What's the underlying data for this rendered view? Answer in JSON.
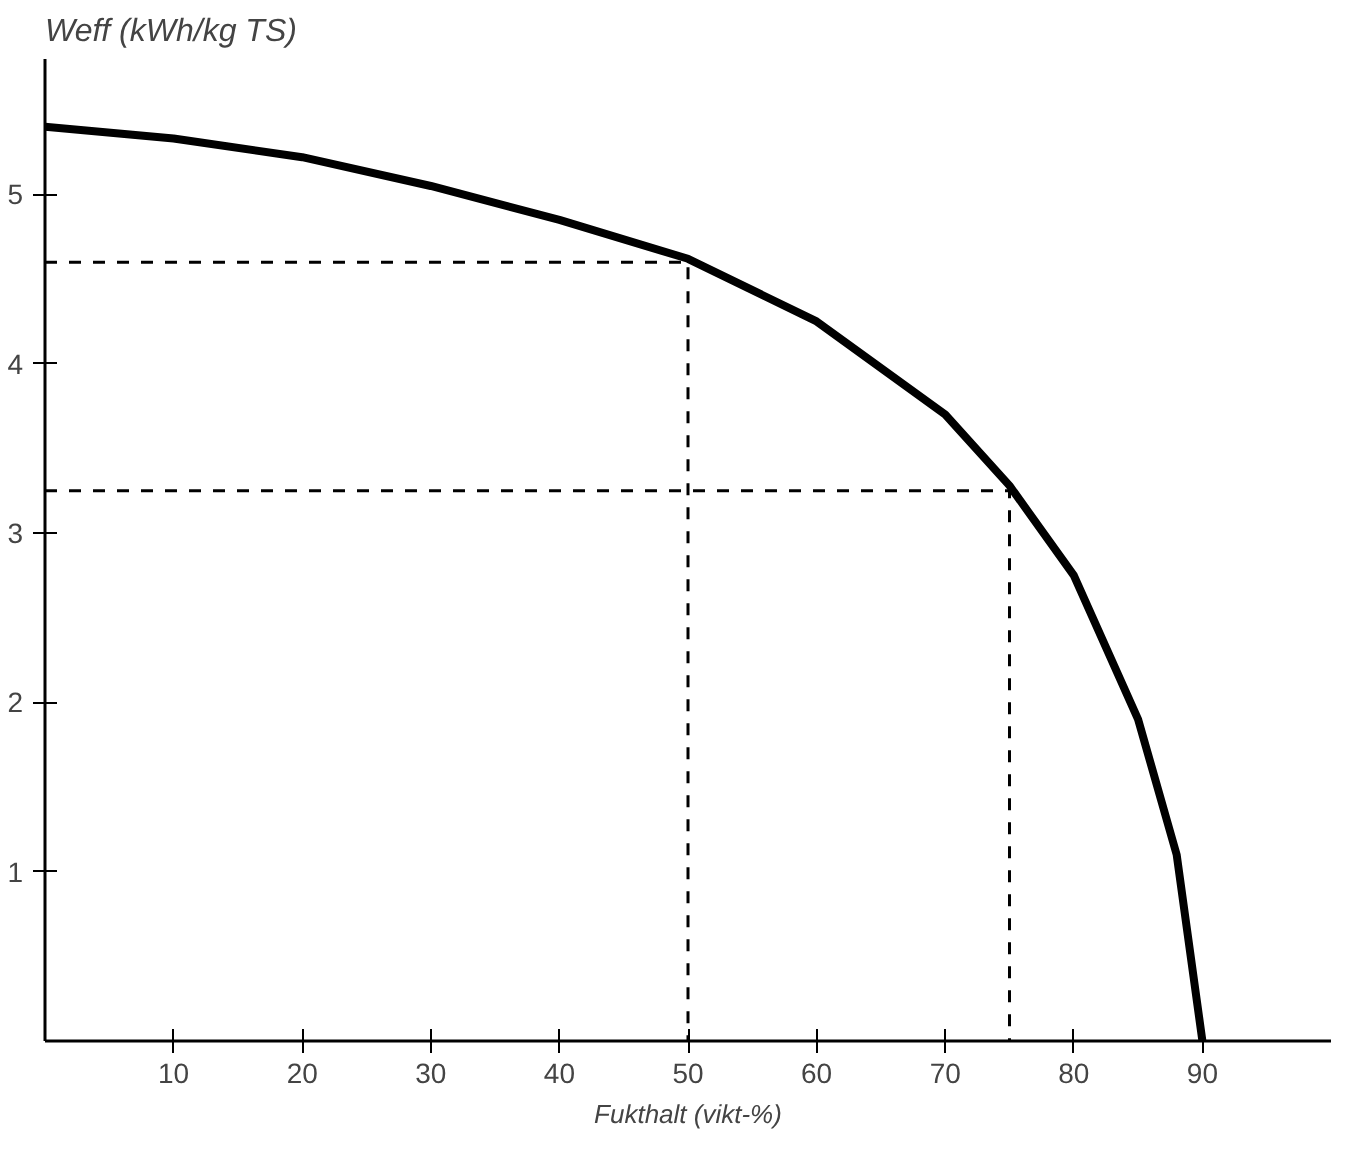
{
  "chart_data": {
    "type": "line",
    "xlabel": "Fukthalt (vikt-%)",
    "ylabel": "Weff (kWh/kg TS)",
    "xlim": [
      0,
      100
    ],
    "ylim": [
      0,
      5.8
    ],
    "xticks": [
      10,
      20,
      30,
      40,
      50,
      60,
      70,
      80,
      90
    ],
    "yticks": [
      1,
      2,
      3,
      4,
      5
    ],
    "grid": false,
    "series": [
      {
        "color": "#000000",
        "line_style": "solid",
        "x": [
          0,
          10,
          20,
          30,
          40,
          50,
          60,
          70,
          75,
          80,
          85,
          88,
          90
        ],
        "values": [
          5.4,
          5.33,
          5.22,
          5.05,
          4.85,
          4.62,
          4.25,
          3.7,
          3.28,
          2.75,
          1.9,
          1.1,
          0
        ]
      },
      {
        "color": "#000000",
        "line_style": "dashed",
        "x": [
          0,
          50,
          50
        ],
        "values": [
          4.6,
          4.6,
          0
        ]
      },
      {
        "color": "#000000",
        "line_style": "dashed",
        "x": [
          0,
          75,
          75
        ],
        "values": [
          3.25,
          3.25,
          0
        ]
      }
    ]
  }
}
